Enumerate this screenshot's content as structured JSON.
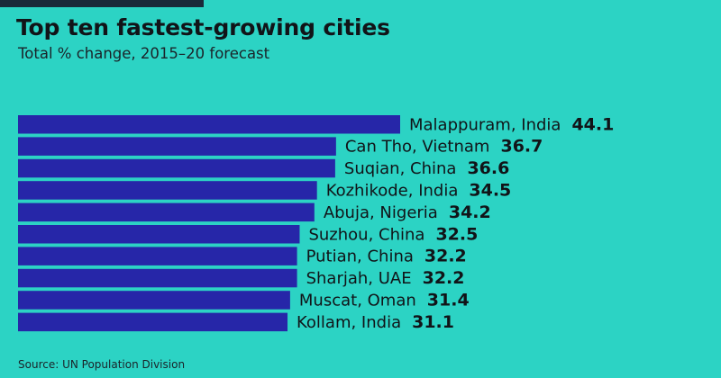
{
  "title": "Top ten fastest-growing cities",
  "subtitle": "Total % change, 2015–20 forecast",
  "source": "Source: UN Population Division",
  "colors": {
    "background": "#2cd3c4",
    "bar": "#2626a8",
    "text": "#111418"
  },
  "chart_data": {
    "type": "bar",
    "orientation": "horizontal",
    "categories": [
      "Malappuram, India",
      "Can Tho, Vietnam",
      "Suqian, China",
      "Kozhikode, India",
      "Abuja, Nigeria",
      "Suzhou, China",
      "Putian, China",
      "Sharjah, UAE",
      "Muscat, Oman",
      "Kollam, India"
    ],
    "values": [
      44.1,
      36.7,
      36.6,
      34.5,
      34.2,
      32.5,
      32.2,
      32.2,
      31.4,
      31.1
    ],
    "value_labels": [
      "44.1",
      "36.7",
      "36.6",
      "34.5",
      "34.2",
      "32.5",
      "32.2",
      "32.2",
      "31.4",
      "31.1"
    ],
    "title": "Top ten fastest-growing cities",
    "subtitle": "Total % change, 2015–20 forecast",
    "xlabel": "",
    "ylabel": "",
    "grid": false,
    "legend": "none"
  }
}
